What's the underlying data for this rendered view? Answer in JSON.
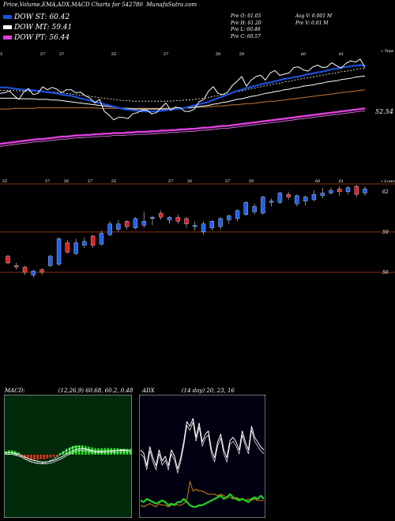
{
  "header": {
    "title": "Price,Volume,EMA,ADX,MACD Charts for 542780",
    "site": "MunafaSutra.com"
  },
  "legend": [
    {
      "label": "DOW ST: 60.42",
      "color": "#1e4fd8"
    },
    {
      "label": "DOW MT: 59.41",
      "color": "#ffffff"
    },
    {
      "label": "DOW PT: 56.44",
      "color": "#e040e0"
    }
  ],
  "quote": {
    "open": "Pre  O: 61.05",
    "high": "Pre  H: 61.20",
    "low": "Pre  L: 60.48",
    "close": "Pre  C: 60.57",
    "avgvol": "Avg V: 0.001 M",
    "prevvol": "Pre  V: 0.01 M"
  },
  "chart_data": [
    {
      "type": "line",
      "name": "EMA panel",
      "corner_top": "« Tops",
      "corner_bottom": "« Lows",
      "top_ticks": [
        {
          "x": 0,
          "label": "55"
        },
        {
          "x": 9,
          "label": "57"
        },
        {
          "x": 13,
          "label": "57"
        },
        {
          "x": 24,
          "label": "55"
        },
        {
          "x": 35,
          "label": "57"
        },
        {
          "x": 46,
          "label": "58"
        },
        {
          "x": 51,
          "label": "59"
        },
        {
          "x": 64,
          "label": "60"
        },
        {
          "x": 72,
          "label": "61"
        }
      ],
      "bottom_ticks": [
        {
          "x": 1,
          "label": "55"
        },
        {
          "x": 10,
          "label": "57"
        },
        {
          "x": 14,
          "label": "56"
        },
        {
          "x": 19,
          "label": "57"
        },
        {
          "x": 24,
          "label": "55"
        },
        {
          "x": 36,
          "label": "57"
        },
        {
          "x": 40,
          "label": "56"
        },
        {
          "x": 48,
          "label": "57"
        },
        {
          "x": 53,
          "label": "59"
        },
        {
          "x": 67,
          "label": "60"
        },
        {
          "x": 72,
          "label": "61"
        }
      ],
      "value_label": "52.54",
      "ylim": [
        43,
        64
      ],
      "series": [
        {
          "role": "price",
          "color": "#ffffff",
          "values": [
            57.4,
            57.5,
            57.8,
            57.0,
            56.4,
            57.6,
            58.2,
            57.2,
            57.4,
            58.5,
            58.0,
            58.4,
            58.1,
            57.5,
            58.0,
            58.0,
            57.5,
            57.6,
            57.0,
            56.6,
            55.8,
            56.4,
            54.4,
            53.8,
            53.0,
            53.4,
            53.4,
            53.2,
            54.0,
            54.2,
            54.6,
            54.6,
            54.0,
            54.2,
            55.0,
            55.8,
            54.6,
            55.1,
            55.0,
            54.4,
            54.4,
            54.8,
            56.0,
            56.4,
            57.8,
            58.5,
            57.4,
            57.2,
            57.6,
            58.7,
            59.4,
            60.2,
            58.6,
            59.6,
            60.2,
            60.4,
            59.6,
            60.8,
            61.2,
            60.4,
            60.6,
            60.8,
            61.7,
            61.8,
            61.3,
            61.1,
            61.8,
            62.1,
            61.7,
            61.8,
            62.5,
            62.0,
            61.6,
            62.4,
            62.8,
            62.6,
            63.1,
            61.7
          ]
        },
        {
          "role": "ema-st",
          "color": "#1e4fd8",
          "values": [
            58.4,
            58.4,
            58.3,
            58.2,
            58.1,
            58.0,
            58.0,
            57.9,
            57.8,
            57.7,
            57.6,
            57.5,
            57.4,
            57.2,
            57.1,
            57.0,
            56.8,
            56.6,
            56.4,
            56.2,
            56.0,
            55.8,
            55.6,
            55.4,
            55.2,
            55.0,
            54.8,
            54.7,
            54.6,
            54.5,
            54.4,
            54.4,
            54.4,
            54.4,
            54.5,
            54.6,
            54.7,
            54.8,
            54.9,
            55.0,
            55.2,
            55.4,
            55.6,
            55.8,
            56.0,
            56.3,
            56.6,
            56.9,
            57.2,
            57.5,
            57.8,
            58.0,
            58.3,
            58.5,
            58.7,
            58.9,
            59.1,
            59.2,
            59.4,
            59.6,
            59.8,
            59.9,
            60.1,
            60.2,
            60.4,
            60.6,
            60.7,
            60.9,
            61.0,
            61.2,
            61.4,
            61.5,
            61.7,
            61.8,
            61.9,
            62.0,
            62.1,
            62.0
          ]
        },
        {
          "role": "ema-mt",
          "color": "#ffffff",
          "values": [
            56.6,
            56.6,
            56.6,
            56.6,
            56.5,
            56.5,
            56.5,
            56.5,
            56.4,
            56.4,
            56.4,
            56.3,
            56.3,
            56.2,
            56.1,
            56.0,
            55.9,
            55.8,
            55.7,
            55.6,
            55.5,
            55.4,
            55.3,
            55.2,
            55.1,
            55.0,
            54.9,
            54.9,
            54.8,
            54.8,
            54.8,
            54.8,
            54.8,
            54.8,
            54.8,
            54.8,
            54.8,
            54.9,
            54.9,
            55.0,
            55.0,
            55.1,
            55.2,
            55.3,
            55.4,
            55.6,
            55.7,
            55.9,
            56.0,
            56.2,
            56.4,
            56.5,
            56.7,
            56.9,
            57.0,
            57.2,
            57.4,
            57.5,
            57.7,
            57.8,
            58.0,
            58.1,
            58.3,
            58.4,
            58.6,
            58.7,
            58.8,
            59.0,
            59.1,
            59.3,
            59.4,
            59.5,
            59.7,
            59.8,
            59.9,
            60.1,
            60.2,
            60.3
          ]
        },
        {
          "role": "ema-lt",
          "color": "#c07838",
          "values": [
            54.8,
            54.8,
            54.8,
            54.9,
            54.9,
            54.9,
            54.9,
            54.9,
            55.0,
            55.0,
            55.0,
            55.0,
            55.0,
            55.0,
            55.0,
            55.0,
            55.0,
            55.0,
            55.0,
            55.0,
            55.0,
            54.9,
            54.9,
            54.9,
            54.9,
            54.9,
            54.9,
            54.9,
            54.9,
            54.9,
            54.9,
            54.9,
            54.9,
            54.9,
            54.9,
            54.9,
            54.9,
            55.0,
            55.0,
            55.0,
            55.0,
            55.1,
            55.1,
            55.1,
            55.2,
            55.2,
            55.3,
            55.3,
            55.4,
            55.5,
            55.5,
            55.6,
            55.7,
            55.7,
            55.8,
            55.9,
            56.0,
            56.1,
            56.1,
            56.2,
            56.3,
            56.4,
            56.5,
            56.6,
            56.7,
            56.8,
            56.9,
            57.0,
            57.1,
            57.2,
            57.3,
            57.4,
            57.5,
            57.6,
            57.7,
            57.8,
            57.9,
            58.0
          ]
        },
        {
          "role": "ema-pt",
          "color": "#e040e0",
          "values": [
            49.0,
            49.1,
            49.2,
            49.3,
            49.4,
            49.5,
            49.6,
            49.7,
            49.8,
            49.8,
            49.9,
            50.0,
            50.1,
            50.2,
            50.2,
            50.3,
            50.4,
            50.4,
            50.5,
            50.5,
            50.6,
            50.6,
            50.7,
            50.7,
            50.8,
            50.8,
            50.8,
            50.9,
            50.9,
            51.0,
            51.0,
            51.0,
            51.1,
            51.1,
            51.2,
            51.2,
            51.3,
            51.3,
            51.4,
            51.4,
            51.5,
            51.5,
            51.6,
            51.7,
            51.7,
            51.8,
            51.9,
            52.0,
            52.0,
            52.1,
            52.2,
            52.3,
            52.4,
            52.5,
            52.6,
            52.7,
            52.8,
            52.9,
            53.0,
            53.1,
            53.2,
            53.3,
            53.4,
            53.5,
            53.6,
            53.7,
            53.8,
            53.9,
            54.0,
            54.1,
            54.2,
            54.3,
            54.4,
            54.5,
            54.6,
            54.7,
            54.8,
            54.9
          ]
        }
      ]
    },
    {
      "type": "candlestick",
      "name": "Price panel",
      "ylim": [
        55,
        62.4
      ],
      "yticks": [
        {
          "value": 62,
          "label": "62"
        },
        {
          "value": 59,
          "label": "59"
        },
        {
          "value": 56,
          "label": "56"
        }
      ],
      "gridlines": [
        59,
        56
      ],
      "candles": [
        {
          "o": 57.2,
          "c": 56.7,
          "h": 57.3,
          "l": 56.6,
          "up": false
        },
        {
          "o": 56.5,
          "c": 56.4,
          "h": 56.7,
          "l": 56.2,
          "up": false
        },
        {
          "o": 56.4,
          "c": 56.0,
          "h": 56.5,
          "l": 55.8,
          "up": false
        },
        {
          "o": 55.8,
          "c": 56.1,
          "h": 56.2,
          "l": 55.6,
          "up": true
        },
        {
          "o": 56.2,
          "c": 56.0,
          "h": 56.3,
          "l": 55.8,
          "up": false
        },
        {
          "o": 56.5,
          "c": 57.2,
          "h": 57.3,
          "l": 56.4,
          "up": true
        },
        {
          "o": 56.6,
          "c": 58.5,
          "h": 58.6,
          "l": 56.5,
          "up": true
        },
        {
          "o": 58.2,
          "c": 57.5,
          "h": 58.4,
          "l": 57.4,
          "up": false
        },
        {
          "o": 57.4,
          "c": 58.2,
          "h": 58.5,
          "l": 57.3,
          "up": true
        },
        {
          "o": 58.0,
          "c": 58.3,
          "h": 58.6,
          "l": 57.8,
          "up": true
        },
        {
          "o": 58.7,
          "c": 58.0,
          "h": 58.8,
          "l": 57.8,
          "up": false
        },
        {
          "o": 58.1,
          "c": 58.9,
          "h": 59.1,
          "l": 58.0,
          "up": true
        },
        {
          "o": 58.8,
          "c": 59.6,
          "h": 59.8,
          "l": 58.7,
          "up": true
        },
        {
          "o": 59.2,
          "c": 59.6,
          "h": 59.9,
          "l": 59.0,
          "up": true
        },
        {
          "o": 59.8,
          "c": 59.4,
          "h": 59.9,
          "l": 59.2,
          "up": false
        },
        {
          "o": 59.3,
          "c": 60.0,
          "h": 60.1,
          "l": 59.2,
          "up": true
        },
        {
          "o": 59.5,
          "c": 59.8,
          "h": 60.5,
          "l": 59.3,
          "up": true
        },
        {
          "o": 60.0,
          "c": 60.1,
          "h": 60.2,
          "l": 59.5,
          "up": true
        },
        {
          "o": 60.4,
          "c": 60.1,
          "h": 60.6,
          "l": 59.9,
          "up": false
        },
        {
          "o": 59.9,
          "c": 60.1,
          "h": 60.2,
          "l": 59.6,
          "up": true
        },
        {
          "o": 60.1,
          "c": 59.8,
          "h": 60.3,
          "l": 59.6,
          "up": false
        },
        {
          "o": 60.0,
          "c": 59.6,
          "h": 60.1,
          "l": 59.3,
          "up": false
        },
        {
          "o": 59.4,
          "c": 59.5,
          "h": 59.8,
          "l": 59.1,
          "up": true
        },
        {
          "o": 59.0,
          "c": 59.6,
          "h": 59.8,
          "l": 58.8,
          "up": true
        },
        {
          "o": 59.3,
          "c": 59.8,
          "h": 59.9,
          "l": 59.1,
          "up": true
        },
        {
          "o": 59.4,
          "c": 60.0,
          "h": 60.1,
          "l": 59.2,
          "up": true
        },
        {
          "o": 59.9,
          "c": 60.2,
          "h": 60.3,
          "l": 59.6,
          "up": true
        },
        {
          "o": 60.0,
          "c": 60.6,
          "h": 60.7,
          "l": 59.8,
          "up": true
        },
        {
          "o": 60.3,
          "c": 61.2,
          "h": 61.3,
          "l": 60.2,
          "up": true
        },
        {
          "o": 60.5,
          "c": 60.9,
          "h": 61.1,
          "l": 60.3,
          "up": true
        },
        {
          "o": 60.4,
          "c": 61.6,
          "h": 61.7,
          "l": 60.3,
          "up": true
        },
        {
          "o": 61.2,
          "c": 61.3,
          "h": 61.5,
          "l": 60.9,
          "up": true
        },
        {
          "o": 61.2,
          "c": 61.9,
          "h": 62.0,
          "l": 61.1,
          "up": true
        },
        {
          "o": 61.8,
          "c": 61.6,
          "h": 62.0,
          "l": 61.4,
          "up": false
        },
        {
          "o": 61.1,
          "c": 61.7,
          "h": 61.8,
          "l": 60.9,
          "up": true
        },
        {
          "o": 61.3,
          "c": 61.6,
          "h": 61.7,
          "l": 61.0,
          "up": true
        },
        {
          "o": 61.4,
          "c": 61.8,
          "h": 62.1,
          "l": 61.3,
          "up": true
        },
        {
          "o": 61.7,
          "c": 61.9,
          "h": 62.3,
          "l": 61.5,
          "up": true
        },
        {
          "o": 61.9,
          "c": 62.1,
          "h": 62.3,
          "l": 61.8,
          "up": true
        },
        {
          "o": 62.2,
          "c": 62.0,
          "h": 62.4,
          "l": 61.7,
          "up": false
        },
        {
          "o": 62.0,
          "c": 62.3,
          "h": 62.4,
          "l": 61.8,
          "up": true
        },
        {
          "o": 62.4,
          "c": 61.8,
          "h": 62.5,
          "l": 61.6,
          "up": false
        },
        {
          "o": 61.9,
          "c": 62.2,
          "h": 62.4,
          "l": 61.7,
          "up": true
        }
      ]
    },
    {
      "type": "bar",
      "name": "MACD panel",
      "title": "MACD:",
      "params": "(12,26,9) 60.68, 60.2, 0.48",
      "ylim": [
        -4,
        4
      ],
      "macd": [
        0.2,
        0.3,
        0.3,
        0.1,
        -0.1,
        -0.3,
        -0.6,
        -0.8,
        -1.0,
        -1.1,
        -1.2,
        -1.2,
        -1.1,
        -1.0,
        -0.8,
        -0.6,
        -0.3,
        0.0,
        0.3,
        0.6,
        0.8,
        1.0,
        1.1,
        1.1,
        1.0,
        0.8,
        0.6,
        0.5,
        0.4,
        0.4,
        0.4,
        0.5,
        0.5,
        0.6,
        0.6,
        0.6,
        0.7,
        0.7,
        0.6,
        0.6
      ],
      "signal": [
        0.3,
        0.3,
        0.3,
        0.2,
        0.1,
        -0.1,
        -0.3,
        -0.5,
        -0.7,
        -0.8,
        -0.9,
        -1.0,
        -1.0,
        -1.0,
        -0.9,
        -0.8,
        -0.6,
        -0.4,
        -0.2,
        0.1,
        0.3,
        0.5,
        0.7,
        0.8,
        0.8,
        0.8,
        0.7,
        0.6,
        0.5,
        0.5,
        0.5,
        0.5,
        0.5,
        0.5,
        0.5,
        0.6,
        0.6,
        0.6,
        0.6,
        0.6
      ],
      "hist": [
        0.5,
        0.6,
        0.6,
        0.5,
        0.3,
        -0.3,
        -0.5,
        -0.6,
        -0.7,
        -0.7,
        -0.7,
        -0.6,
        -0.6,
        -0.5,
        -0.4,
        -0.3,
        -0.2,
        0.2,
        0.5,
        0.8,
        1.0,
        1.2,
        1.3,
        1.3,
        1.3,
        1.2,
        1.1,
        1.0,
        0.9,
        0.9,
        0.9,
        0.9,
        0.9,
        0.9,
        0.9,
        0.9,
        0.8,
        0.8,
        0.8,
        0.8
      ]
    },
    {
      "type": "line",
      "name": "ADX panel",
      "title": "ADX",
      "params": "(14 day) 20, 23, 16",
      "ylim": [
        0,
        70
      ],
      "series": [
        {
          "role": "adx",
          "color": "#ffffff",
          "values": [
            40,
            38,
            30,
            42,
            35,
            30,
            40,
            33,
            36,
            30,
            40,
            36,
            28,
            35,
            45,
            58,
            55,
            60,
            48,
            57,
            45,
            50,
            52,
            40,
            35,
            45,
            50,
            40,
            35,
            46,
            48,
            45,
            40,
            52,
            45,
            40,
            55,
            48,
            45,
            42,
            40
          ]
        },
        {
          "role": "plus-di",
          "color": "#d07a18",
          "values": [
            5,
            4,
            5,
            6,
            5,
            4,
            6,
            5,
            5,
            4,
            5,
            6,
            5,
            5,
            6,
            8,
            20,
            14,
            15,
            14,
            14,
            13,
            12,
            12,
            12,
            11,
            12,
            11,
            10,
            10,
            9,
            10,
            9,
            9,
            8,
            9,
            8,
            9,
            8,
            8,
            8
          ]
        },
        {
          "role": "minus-di",
          "color": "#20d020",
          "values": [
            8,
            7,
            9,
            8,
            7,
            6,
            7,
            8,
            7,
            5,
            6,
            5,
            7,
            7,
            9,
            7,
            5,
            4,
            4,
            5,
            5,
            6,
            7,
            8,
            9,
            10,
            11,
            9,
            10,
            12,
            10,
            9,
            8,
            9,
            8,
            7,
            9,
            10,
            9,
            11,
            9
          ]
        }
      ]
    }
  ]
}
